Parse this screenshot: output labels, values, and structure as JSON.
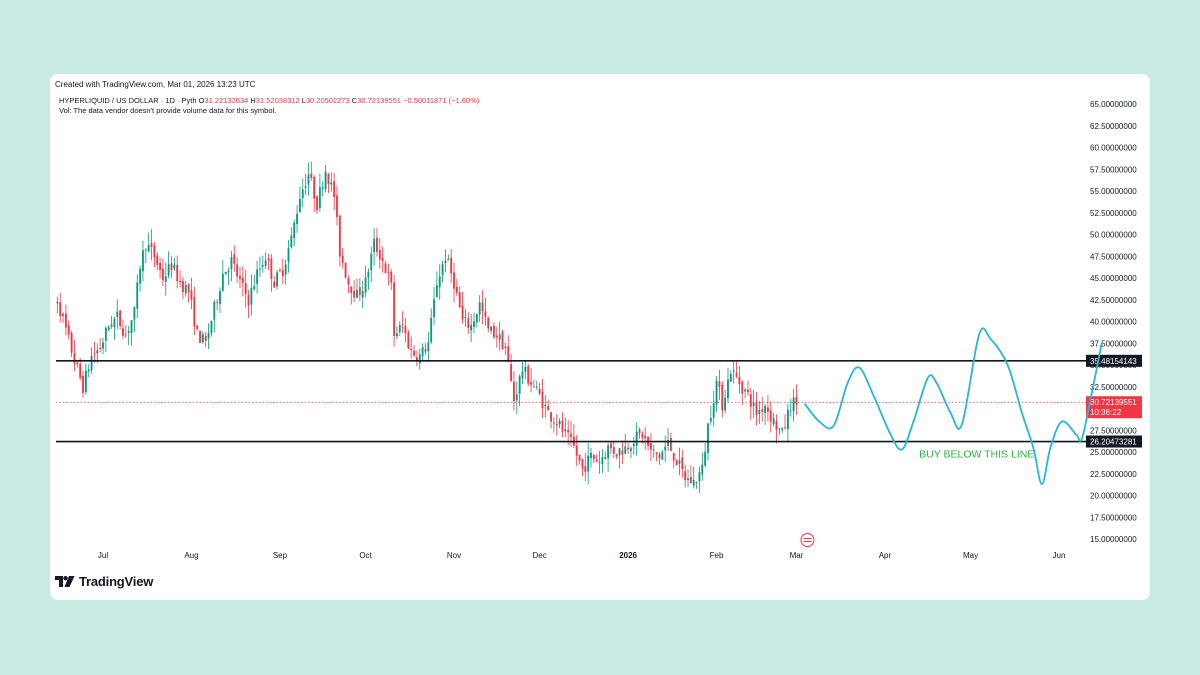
{
  "header": {
    "created": "Created with TradingView.com, Mar 01, 2026 13:23 UTC"
  },
  "legend": {
    "symbol": "HYPERLIQUID / US DOLLAR · 1D · Pyth",
    "open_label": "O",
    "open": "31.22132634",
    "high_label": "H",
    "high": "31.52038312",
    "low_label": "L",
    "low": "30.20502273",
    "close_label": "C",
    "close": "30.72139551",
    "change": "−0.50011871 (−1.60%)",
    "vol_note": "Vol: The data vendor doesn't provide volume data for this symbol."
  },
  "brand": {
    "name": "TradingView"
  },
  "colors": {
    "up": "#089981",
    "down": "#f23645",
    "projection": "#29b6d6",
    "annotation": "#2fb344",
    "line": "#131722"
  },
  "chart_data": {
    "type": "line",
    "title": "HYPERLIQUID / US DOLLAR · 1D · Pyth",
    "price_axis": {
      "ylim": [
        15,
        65
      ],
      "ticks": [
        "65.00000000",
        "62.50000000",
        "60.00000000",
        "57.50000000",
        "55.00000000",
        "52.50000000",
        "50.00000000",
        "47.50000000",
        "45.00000000",
        "42.50000000",
        "40.00000000",
        "37.50000000",
        "35.00000000",
        "32.50000000",
        "27.50000000",
        "25.00000000",
        "22.50000000",
        "20.00000000",
        "17.50000000",
        "15.00000000"
      ]
    },
    "time_axis": [
      {
        "label": "Jul",
        "date": "2025-07-01"
      },
      {
        "label": "Aug",
        "date": "2025-08-01"
      },
      {
        "label": "Sep",
        "date": "2025-09-01"
      },
      {
        "label": "Oct",
        "date": "2025-10-01"
      },
      {
        "label": "Nov",
        "date": "2025-11-01"
      },
      {
        "label": "Dec",
        "date": "2025-12-01"
      },
      {
        "label": "2026",
        "date": "2026-01-01"
      },
      {
        "label": "Feb",
        "date": "2026-02-01"
      },
      {
        "label": "Mar",
        "date": "2026-03-01"
      },
      {
        "label": "Apr",
        "date": "2026-04-01"
      },
      {
        "label": "May",
        "date": "2026-05-01"
      },
      {
        "label": "Jun",
        "date": "2026-06-01"
      }
    ],
    "horizontal_lines": [
      {
        "name": "resistance",
        "value": 35.48154143,
        "label": "35.48154143"
      },
      {
        "name": "support",
        "value": 26.20473281,
        "label": "26.20473281"
      }
    ],
    "last_price": {
      "value": 30.72139551,
      "label": "30.72139551",
      "countdown": "10:36:22"
    },
    "annotation": {
      "text": "BUY BELOW THIS LINE",
      "date": "2026-04-13",
      "price": 24.8
    },
    "price_path": [
      {
        "date": "2025-06-12",
        "price": 41.0
      },
      {
        "date": "2025-06-15",
        "price": 42.5
      },
      {
        "date": "2025-06-18",
        "price": 39.0
      },
      {
        "date": "2025-06-21",
        "price": 35.5
      },
      {
        "date": "2025-06-24",
        "price": 32.5
      },
      {
        "date": "2025-06-27",
        "price": 36.0
      },
      {
        "date": "2025-06-30",
        "price": 37.0
      },
      {
        "date": "2025-07-03",
        "price": 39.5
      },
      {
        "date": "2025-07-06",
        "price": 40.5
      },
      {
        "date": "2025-07-09",
        "price": 38.5
      },
      {
        "date": "2025-07-12",
        "price": 41.0
      },
      {
        "date": "2025-07-14",
        "price": 46.5
      },
      {
        "date": "2025-07-16",
        "price": 49.0
      },
      {
        "date": "2025-07-19",
        "price": 47.5
      },
      {
        "date": "2025-07-22",
        "price": 45.0
      },
      {
        "date": "2025-07-25",
        "price": 46.5
      },
      {
        "date": "2025-07-28",
        "price": 44.5
      },
      {
        "date": "2025-07-31",
        "price": 43.5
      },
      {
        "date": "2025-08-03",
        "price": 38.5
      },
      {
        "date": "2025-08-06",
        "price": 37.5
      },
      {
        "date": "2025-08-09",
        "price": 41.5
      },
      {
        "date": "2025-08-12",
        "price": 45.5
      },
      {
        "date": "2025-08-15",
        "price": 47.0
      },
      {
        "date": "2025-08-18",
        "price": 44.5
      },
      {
        "date": "2025-08-21",
        "price": 42.5
      },
      {
        "date": "2025-08-24",
        "price": 45.5
      },
      {
        "date": "2025-08-27",
        "price": 47.5
      },
      {
        "date": "2025-08-30",
        "price": 44.5
      },
      {
        "date": "2025-09-02",
        "price": 46.0
      },
      {
        "date": "2025-09-05",
        "price": 49.5
      },
      {
        "date": "2025-09-08",
        "price": 54.5
      },
      {
        "date": "2025-09-11",
        "price": 57.0
      },
      {
        "date": "2025-09-14",
        "price": 53.5
      },
      {
        "date": "2025-09-17",
        "price": 57.5
      },
      {
        "date": "2025-09-20",
        "price": 54.5
      },
      {
        "date": "2025-09-22",
        "price": 48.0
      },
      {
        "date": "2025-09-25",
        "price": 44.5
      },
      {
        "date": "2025-09-28",
        "price": 43.0
      },
      {
        "date": "2025-10-01",
        "price": 44.5
      },
      {
        "date": "2025-10-04",
        "price": 49.0
      },
      {
        "date": "2025-10-07",
        "price": 47.0
      },
      {
        "date": "2025-10-10",
        "price": 44.0
      },
      {
        "date": "2025-10-11",
        "price": 38.5
      },
      {
        "date": "2025-10-14",
        "price": 39.5
      },
      {
        "date": "2025-10-17",
        "price": 36.5
      },
      {
        "date": "2025-10-20",
        "price": 36.0
      },
      {
        "date": "2025-10-23",
        "price": 37.5
      },
      {
        "date": "2025-10-26",
        "price": 44.5
      },
      {
        "date": "2025-10-29",
        "price": 47.5
      },
      {
        "date": "2025-11-01",
        "price": 44.5
      },
      {
        "date": "2025-11-04",
        "price": 40.0
      },
      {
        "date": "2025-11-07",
        "price": 39.5
      },
      {
        "date": "2025-11-10",
        "price": 42.0
      },
      {
        "date": "2025-11-13",
        "price": 39.0
      },
      {
        "date": "2025-11-16",
        "price": 38.5
      },
      {
        "date": "2025-11-19",
        "price": 37.0
      },
      {
        "date": "2025-11-22",
        "price": 31.0
      },
      {
        "date": "2025-11-25",
        "price": 34.5
      },
      {
        "date": "2025-11-28",
        "price": 33.0
      },
      {
        "date": "2025-12-01",
        "price": 31.5
      },
      {
        "date": "2025-12-04",
        "price": 29.5
      },
      {
        "date": "2025-12-07",
        "price": 28.5
      },
      {
        "date": "2025-12-10",
        "price": 27.0
      },
      {
        "date": "2025-12-13",
        "price": 25.5
      },
      {
        "date": "2025-12-16",
        "price": 23.0
      },
      {
        "date": "2025-12-19",
        "price": 24.5
      },
      {
        "date": "2025-12-22",
        "price": 24.0
      },
      {
        "date": "2025-12-25",
        "price": 25.5
      },
      {
        "date": "2025-12-28",
        "price": 25.0
      },
      {
        "date": "2025-12-31",
        "price": 25.5
      },
      {
        "date": "2026-01-03",
        "price": 26.5
      },
      {
        "date": "2026-01-06",
        "price": 27.0
      },
      {
        "date": "2026-01-09",
        "price": 25.0
      },
      {
        "date": "2026-01-12",
        "price": 24.5
      },
      {
        "date": "2026-01-15",
        "price": 26.0
      },
      {
        "date": "2026-01-18",
        "price": 24.0
      },
      {
        "date": "2026-01-21",
        "price": 22.0
      },
      {
        "date": "2026-01-24",
        "price": 21.5
      },
      {
        "date": "2026-01-27",
        "price": 23.0
      },
      {
        "date": "2026-01-29",
        "price": 28.0
      },
      {
        "date": "2026-02-01",
        "price": 33.0
      },
      {
        "date": "2026-02-03",
        "price": 30.5
      },
      {
        "date": "2026-02-06",
        "price": 34.5
      },
      {
        "date": "2026-02-09",
        "price": 33.0
      },
      {
        "date": "2026-02-12",
        "price": 31.5
      },
      {
        "date": "2026-02-15",
        "price": 29.5
      },
      {
        "date": "2026-02-18",
        "price": 30.5
      },
      {
        "date": "2026-02-21",
        "price": 28.5
      },
      {
        "date": "2026-02-24",
        "price": 27.0
      },
      {
        "date": "2026-02-27",
        "price": 30.5
      },
      {
        "date": "2026-03-01",
        "price": 30.7
      }
    ],
    "projection_path": [
      {
        "date": "2026-03-04",
        "price": 30.5
      },
      {
        "date": "2026-03-09",
        "price": 28.5
      },
      {
        "date": "2026-03-14",
        "price": 28.0
      },
      {
        "date": "2026-03-19",
        "price": 33.0
      },
      {
        "date": "2026-03-23",
        "price": 34.7
      },
      {
        "date": "2026-03-28",
        "price": 31.5
      },
      {
        "date": "2026-04-03",
        "price": 27.0
      },
      {
        "date": "2026-04-07",
        "price": 25.3
      },
      {
        "date": "2026-04-11",
        "price": 28.5
      },
      {
        "date": "2026-04-16",
        "price": 33.5
      },
      {
        "date": "2026-04-19",
        "price": 33.0
      },
      {
        "date": "2026-04-24",
        "price": 29.5
      },
      {
        "date": "2026-04-28",
        "price": 28.2
      },
      {
        "date": "2026-05-04",
        "price": 38.5
      },
      {
        "date": "2026-05-08",
        "price": 38.0
      },
      {
        "date": "2026-05-14",
        "price": 35.0
      },
      {
        "date": "2026-05-19",
        "price": 29.5
      },
      {
        "date": "2026-05-23",
        "price": 25.5
      },
      {
        "date": "2026-05-26",
        "price": 21.3
      },
      {
        "date": "2026-05-29",
        "price": 25.5
      },
      {
        "date": "2026-06-02",
        "price": 28.5
      },
      {
        "date": "2026-06-07",
        "price": 27.0
      },
      {
        "date": "2026-06-09",
        "price": 26.5
      },
      {
        "date": "2026-06-12",
        "price": 31.0
      },
      {
        "date": "2026-06-16",
        "price": 37.5
      }
    ]
  }
}
